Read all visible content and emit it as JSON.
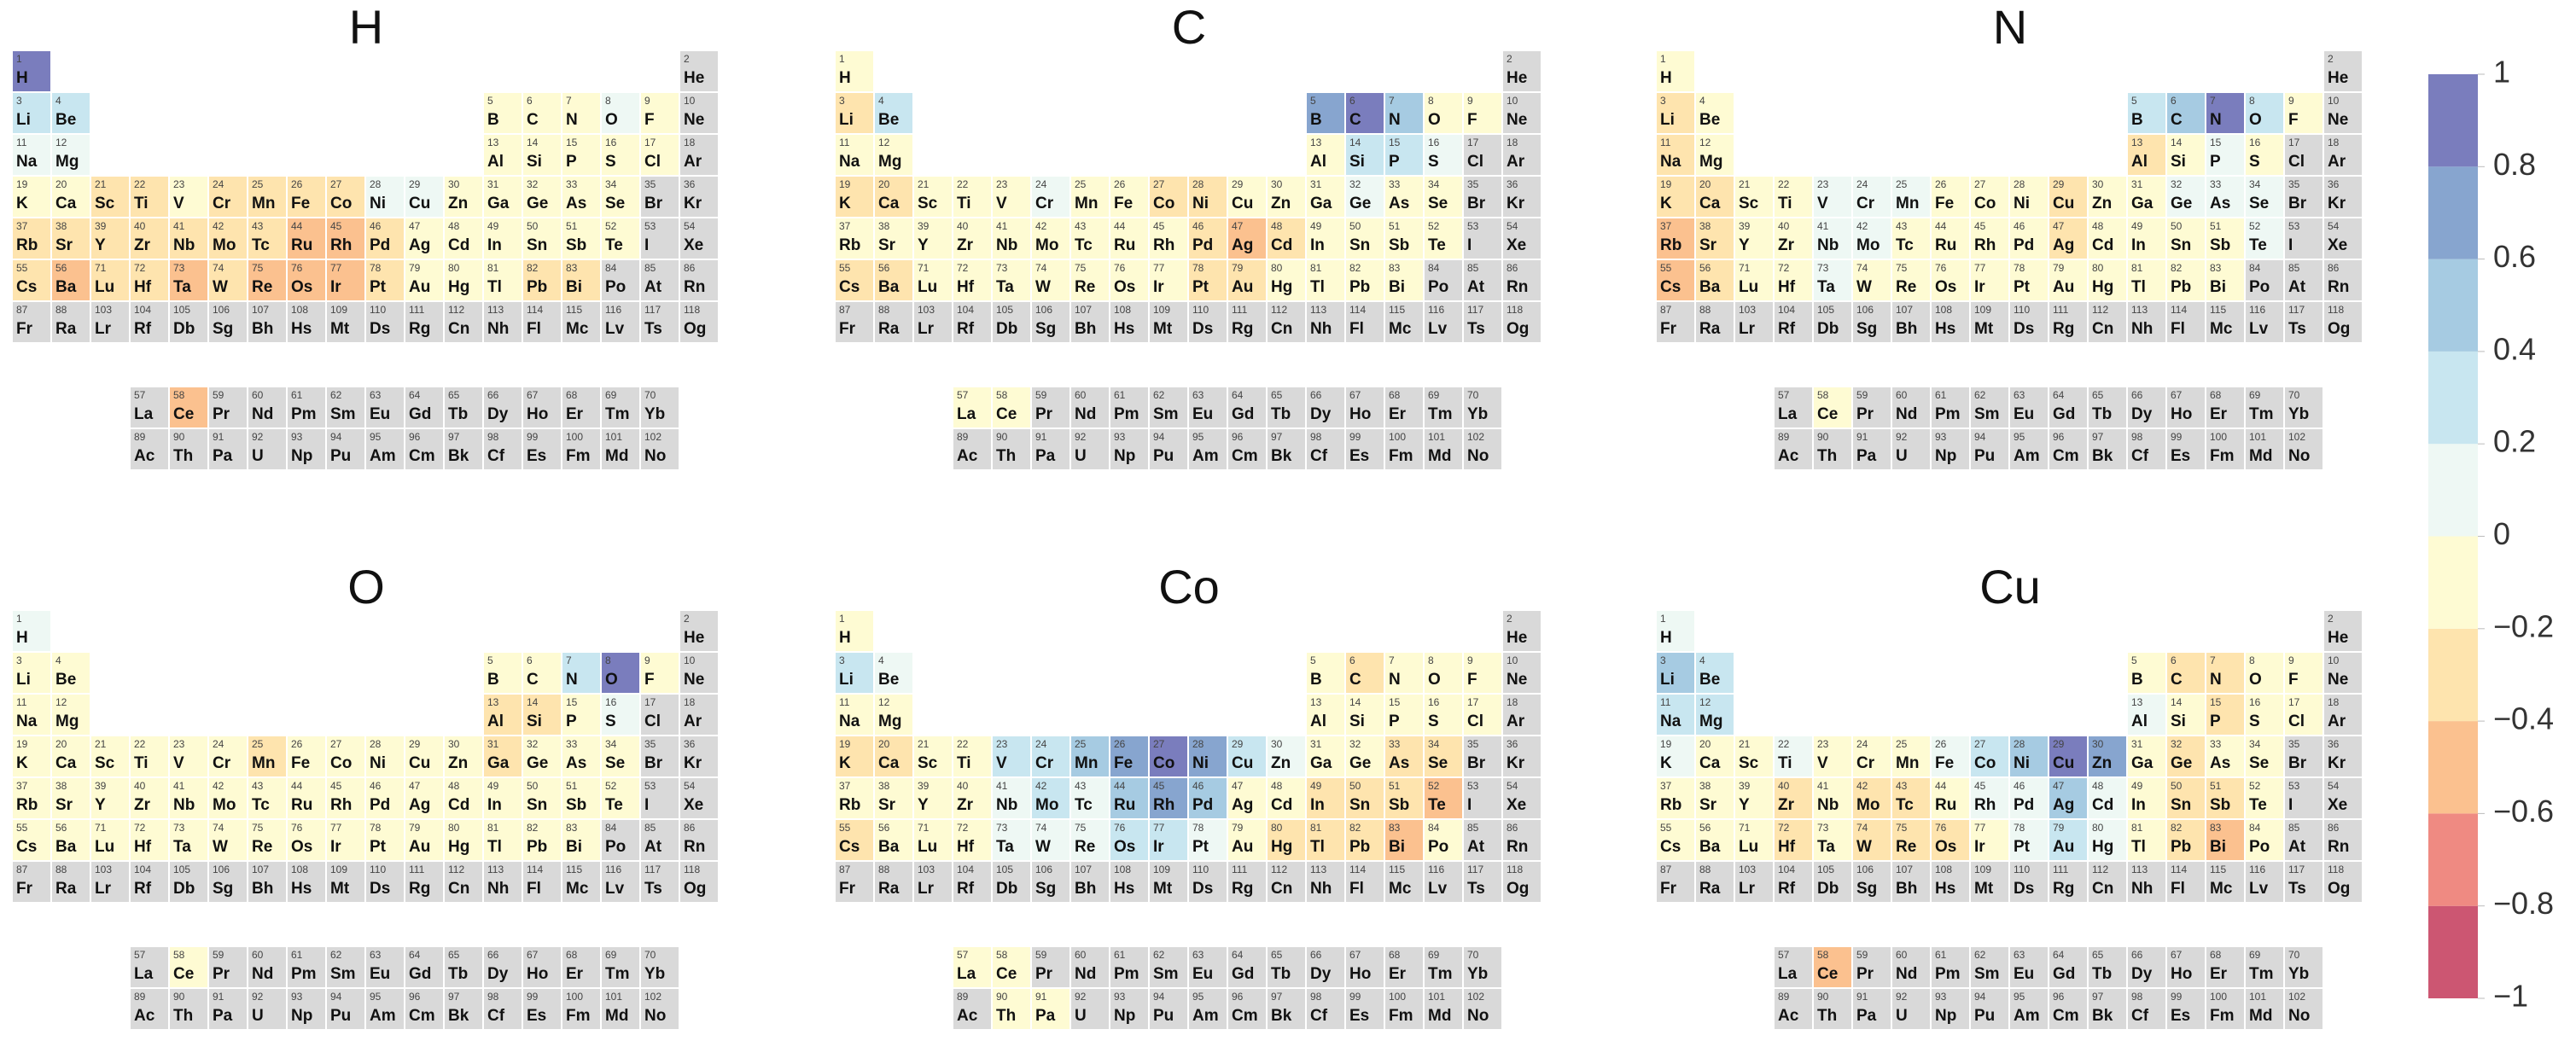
{
  "chart_data": [
    {
      "type": "heatmap",
      "title": "H",
      "values": [
        1,
        null,
        0.3,
        0.3,
        -0.1,
        -0.1,
        -0.1,
        0.1,
        -0.1,
        null,
        0.1,
        0.1,
        -0.1,
        -0.1,
        -0.1,
        -0.1,
        -0.1,
        null,
        -0.1,
        -0.1,
        -0.3,
        -0.3,
        -0.1,
        -0.3,
        -0.3,
        -0.3,
        -0.3,
        0.1,
        0.1,
        -0.1,
        -0.1,
        -0.1,
        -0.1,
        -0.1,
        null,
        null,
        -0.3,
        -0.3,
        -0.3,
        -0.3,
        -0.3,
        -0.3,
        -0.3,
        -0.5,
        -0.5,
        -0.3,
        -0.1,
        -0.1,
        -0.1,
        -0.1,
        -0.1,
        -0.1,
        null,
        null,
        -0.3,
        -0.5,
        null,
        -0.5,
        null,
        null,
        null,
        null,
        null,
        null,
        null,
        null,
        null,
        null,
        null,
        null,
        -0.3,
        -0.3,
        -0.5,
        -0.3,
        -0.5,
        -0.5,
        -0.5,
        -0.3,
        -0.1,
        -0.1,
        -0.1,
        -0.3,
        -0.3,
        null,
        null,
        null,
        null,
        null,
        null,
        null,
        null,
        null,
        null,
        null,
        null,
        null,
        null,
        null,
        null,
        null,
        null,
        null,
        null,
        null,
        null,
        null,
        null,
        null,
        null,
        null,
        null,
        null,
        null,
        null,
        null,
        null,
        null,
        null
      ]
    },
    {
      "type": "heatmap",
      "title": "C",
      "values": [
        -0.1,
        null,
        -0.3,
        0.3,
        0.7,
        1,
        0.5,
        -0.1,
        -0.1,
        null,
        -0.1,
        -0.1,
        -0.1,
        0.3,
        0.3,
        0.1,
        null,
        null,
        -0.3,
        -0.3,
        -0.1,
        -0.1,
        -0.1,
        0.1,
        -0.1,
        -0.1,
        -0.3,
        -0.3,
        -0.1,
        -0.1,
        -0.1,
        0.1,
        -0.1,
        -0.1,
        null,
        null,
        -0.1,
        -0.1,
        -0.1,
        -0.1,
        -0.1,
        -0.1,
        -0.1,
        -0.1,
        -0.1,
        -0.3,
        -0.5,
        -0.3,
        -0.1,
        -0.1,
        -0.1,
        -0.1,
        null,
        null,
        -0.3,
        -0.3,
        -0.1,
        -0.1,
        null,
        null,
        null,
        null,
        null,
        null,
        null,
        null,
        null,
        null,
        null,
        null,
        -0.1,
        -0.1,
        -0.1,
        -0.1,
        -0.1,
        -0.1,
        -0.1,
        -0.3,
        -0.3,
        -0.1,
        -0.1,
        -0.1,
        -0.1,
        null,
        null,
        null,
        null,
        null,
        null,
        null,
        null,
        null,
        null,
        null,
        null,
        null,
        null,
        null,
        null,
        null,
        null,
        null,
        null,
        null,
        null,
        null,
        null,
        null,
        null,
        null,
        null,
        null,
        null,
        null,
        null,
        null,
        null,
        null
      ]
    },
    {
      "type": "heatmap",
      "title": "N",
      "values": [
        -0.1,
        null,
        -0.3,
        -0.1,
        0.3,
        0.5,
        1,
        0.3,
        -0.1,
        null,
        -0.3,
        -0.1,
        -0.3,
        -0.1,
        0.1,
        -0.1,
        null,
        null,
        -0.3,
        -0.3,
        -0.1,
        -0.1,
        0.1,
        0.1,
        0.1,
        -0.1,
        -0.1,
        -0.1,
        -0.3,
        -0.1,
        -0.1,
        0.1,
        0.1,
        0.1,
        null,
        null,
        -0.5,
        -0.3,
        -0.1,
        -0.1,
        0.1,
        0.1,
        -0.1,
        -0.1,
        -0.1,
        -0.1,
        -0.3,
        -0.1,
        -0.1,
        -0.1,
        -0.1,
        0.1,
        null,
        null,
        -0.5,
        -0.3,
        null,
        -0.1,
        null,
        null,
        null,
        null,
        null,
        null,
        null,
        null,
        null,
        null,
        null,
        null,
        -0.1,
        -0.1,
        0.1,
        -0.1,
        -0.1,
        -0.1,
        -0.1,
        -0.1,
        -0.1,
        -0.1,
        -0.1,
        -0.1,
        -0.1,
        null,
        null,
        null,
        null,
        null,
        null,
        null,
        null,
        null,
        null,
        null,
        null,
        null,
        null,
        null,
        null,
        null,
        null,
        null,
        null,
        null,
        null,
        null,
        null,
        null,
        null,
        null,
        null,
        null,
        null,
        null,
        null,
        null,
        null,
        null
      ]
    },
    {
      "type": "heatmap",
      "title": "O",
      "values": [
        0.1,
        null,
        -0.1,
        -0.1,
        -0.1,
        -0.1,
        0.3,
        1,
        -0.1,
        null,
        -0.1,
        -0.1,
        -0.3,
        -0.3,
        -0.1,
        0.1,
        null,
        null,
        -0.1,
        -0.1,
        -0.1,
        -0.1,
        -0.1,
        -0.1,
        -0.3,
        -0.1,
        -0.1,
        -0.1,
        -0.1,
        -0.1,
        -0.3,
        -0.1,
        -0.1,
        -0.1,
        null,
        null,
        -0.1,
        -0.1,
        -0.1,
        -0.1,
        -0.1,
        -0.1,
        -0.1,
        -0.1,
        -0.1,
        -0.1,
        -0.1,
        -0.1,
        -0.1,
        -0.1,
        -0.1,
        -0.1,
        null,
        null,
        -0.1,
        -0.1,
        null,
        -0.1,
        null,
        null,
        null,
        null,
        null,
        null,
        null,
        null,
        null,
        null,
        null,
        null,
        -0.1,
        -0.1,
        -0.1,
        -0.1,
        -0.1,
        -0.1,
        -0.1,
        -0.1,
        -0.1,
        -0.1,
        -0.1,
        -0.1,
        -0.1,
        null,
        null,
        null,
        null,
        null,
        null,
        null,
        null,
        null,
        null,
        null,
        null,
        null,
        null,
        null,
        null,
        null,
        null,
        null,
        null,
        null,
        null,
        null,
        null,
        null,
        null,
        null,
        null,
        null,
        null,
        null,
        null,
        null,
        null,
        null
      ]
    },
    {
      "type": "heatmap",
      "title": "Co",
      "values": [
        -0.1,
        null,
        0.3,
        0.1,
        -0.1,
        -0.3,
        -0.1,
        -0.1,
        -0.1,
        null,
        -0.1,
        -0.1,
        -0.1,
        -0.1,
        -0.1,
        -0.1,
        -0.1,
        null,
        -0.3,
        -0.3,
        -0.1,
        -0.1,
        0.3,
        0.3,
        0.5,
        0.7,
        1,
        0.7,
        0.3,
        0.1,
        -0.1,
        -0.1,
        -0.3,
        -0.3,
        null,
        null,
        -0.1,
        -0.1,
        -0.1,
        -0.1,
        0.1,
        0.3,
        0.1,
        0.5,
        0.7,
        0.5,
        -0.1,
        -0.1,
        -0.3,
        -0.3,
        -0.3,
        -0.5,
        null,
        null,
        -0.3,
        -0.1,
        -0.1,
        -0.1,
        null,
        null,
        null,
        null,
        null,
        null,
        null,
        null,
        null,
        null,
        null,
        null,
        -0.1,
        -0.1,
        0.1,
        0.1,
        0.1,
        0.3,
        0.3,
        0.1,
        -0.1,
        -0.3,
        -0.3,
        -0.3,
        -0.5,
        -0.1,
        null,
        null,
        null,
        null,
        null,
        -0.1,
        -0.1,
        null,
        null,
        null,
        null,
        null,
        null,
        null,
        null,
        null,
        null,
        null,
        null,
        null,
        null,
        null,
        null,
        null,
        null,
        null,
        null,
        null,
        null,
        null,
        null,
        null,
        null,
        null
      ]
    },
    {
      "type": "heatmap",
      "title": "Cu",
      "values": [
        0.1,
        null,
        0.5,
        0.3,
        -0.1,
        -0.3,
        -0.3,
        -0.1,
        -0.1,
        null,
        0.3,
        0.3,
        0.1,
        -0.1,
        -0.3,
        -0.1,
        -0.1,
        null,
        0.1,
        -0.1,
        -0.1,
        0.1,
        -0.1,
        -0.1,
        -0.1,
        0.1,
        0.3,
        0.5,
        1,
        0.7,
        -0.1,
        -0.3,
        -0.1,
        -0.1,
        null,
        null,
        -0.1,
        -0.1,
        -0.1,
        -0.3,
        -0.1,
        -0.3,
        -0.3,
        -0.1,
        0.1,
        0.1,
        0.5,
        0.1,
        -0.1,
        -0.3,
        -0.3,
        -0.1,
        null,
        null,
        -0.1,
        -0.1,
        null,
        -0.5,
        null,
        null,
        null,
        null,
        null,
        null,
        null,
        null,
        null,
        null,
        null,
        null,
        -0.1,
        -0.3,
        -0.1,
        -0.3,
        -0.3,
        -0.3,
        -0.1,
        0.1,
        0.3,
        0.1,
        -0.1,
        -0.3,
        -0.5,
        -0.1,
        null,
        null,
        null,
        null,
        null,
        null,
        null,
        null,
        null,
        null,
        null,
        null,
        null,
        null,
        null,
        null,
        null,
        null,
        null,
        null,
        null,
        null,
        null,
        null,
        null,
        null,
        null,
        null,
        null,
        null,
        null,
        null,
        null,
        null
      ]
    }
  ],
  "elements": {
    "numbers": [
      1,
      2,
      3,
      4,
      5,
      6,
      7,
      8,
      9,
      10,
      11,
      12,
      13,
      14,
      15,
      16,
      17,
      18,
      19,
      20,
      21,
      22,
      23,
      24,
      25,
      26,
      27,
      28,
      29,
      30,
      31,
      32,
      33,
      34,
      35,
      36,
      37,
      38,
      39,
      40,
      41,
      42,
      43,
      44,
      45,
      46,
      47,
      48,
      49,
      50,
      51,
      52,
      53,
      54,
      55,
      56,
      57,
      58,
      59,
      60,
      61,
      62,
      63,
      64,
      65,
      66,
      67,
      68,
      69,
      70,
      71,
      72,
      73,
      74,
      75,
      76,
      77,
      78,
      79,
      80,
      81,
      82,
      83,
      84,
      85,
      86,
      87,
      88,
      89,
      90,
      91,
      92,
      93,
      94,
      95,
      96,
      97,
      98,
      99,
      100,
      101,
      102,
      103,
      104,
      105,
      106,
      107,
      108,
      109,
      110,
      111,
      112,
      113,
      114,
      115,
      116,
      117,
      118
    ],
    "symbols": [
      "H",
      "He",
      "Li",
      "Be",
      "B",
      "C",
      "N",
      "O",
      "F",
      "Ne",
      "Na",
      "Mg",
      "Al",
      "Si",
      "P",
      "S",
      "Cl",
      "Ar",
      "K",
      "Ca",
      "Sc",
      "Ti",
      "V",
      "Cr",
      "Mn",
      "Fe",
      "Co",
      "Ni",
      "Cu",
      "Zn",
      "Ga",
      "Ge",
      "As",
      "Se",
      "Br",
      "Kr",
      "Rb",
      "Sr",
      "Y",
      "Zr",
      "Nb",
      "Mo",
      "Tc",
      "Ru",
      "Rh",
      "Pd",
      "Ag",
      "Cd",
      "In",
      "Sn",
      "Sb",
      "Te",
      "I",
      "Xe",
      "Cs",
      "Ba",
      "La",
      "Ce",
      "Pr",
      "Nd",
      "Pm",
      "Sm",
      "Eu",
      "Gd",
      "Tb",
      "Dy",
      "Ho",
      "Er",
      "Tm",
      "Yb",
      "Lu",
      "Hf",
      "Ta",
      "W",
      "Re",
      "Os",
      "Ir",
      "Pt",
      "Au",
      "Hg",
      "Tl",
      "Pb",
      "Bi",
      "Po",
      "At",
      "Rn",
      "Fr",
      "Ra",
      "Ac",
      "Th",
      "Pa",
      "U",
      "Np",
      "Pu",
      "Am",
      "Cm",
      "Bk",
      "Cf",
      "Es",
      "Fm",
      "Md",
      "No",
      "Lr",
      "Rf",
      "Db",
      "Sg",
      "Bh",
      "Hs",
      "Mt",
      "Ds",
      "Rg",
      "Cn",
      "Nh",
      "Fl",
      "Mc",
      "Lv",
      "Ts",
      "Og"
    ]
  },
  "colorbar": {
    "lim": [
      -1,
      1
    ],
    "ticks": [
      {
        "value": -1,
        "label": "−1"
      },
      {
        "value": -0.8,
        "label": "−0.8"
      },
      {
        "value": -0.6,
        "label": "−0.6"
      },
      {
        "value": -0.4,
        "label": "−0.4"
      },
      {
        "value": -0.2,
        "label": "−0.2"
      },
      0,
      0.2,
      0.4,
      0.6,
      0.8,
      1
    ],
    "colors": [
      "#cc5672",
      "#ef8a82",
      "#fbc18f",
      "#fee4ae",
      "#fefbd3",
      "#eef8f4",
      "#c8e6f0",
      "#a6cbe2",
      "#87a5cf",
      "#7a7dbd"
    ],
    "missing_color": "#d9d9d9"
  }
}
